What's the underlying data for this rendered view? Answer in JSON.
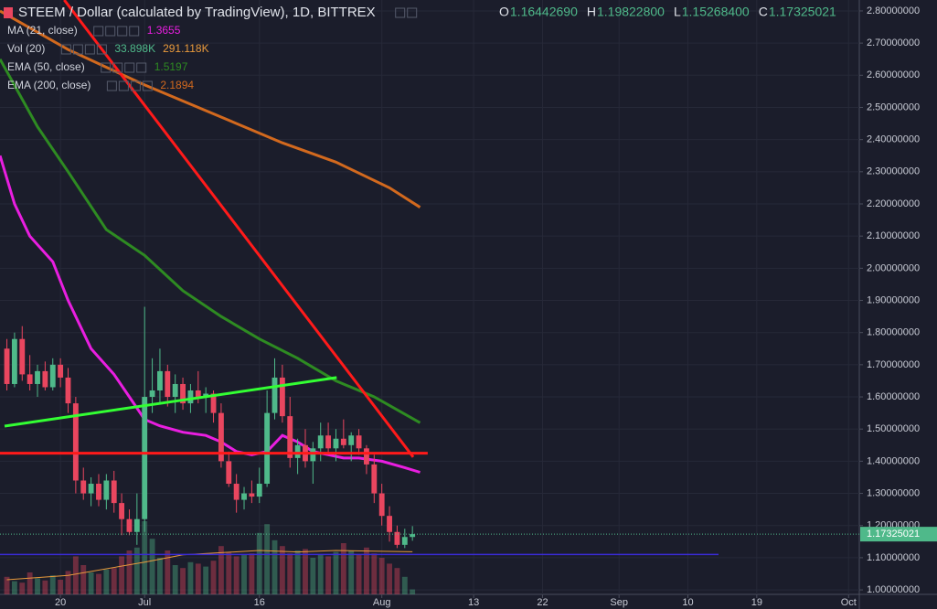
{
  "chart_data": {
    "type": "candlestick",
    "title": "STEEM / Dollar (calculated by TradingView), 1D, BITTREX",
    "ohlc_labels": [
      {
        "key": "O",
        "label": "1.16442690"
      },
      {
        "key": "H",
        "label": "1.19822800"
      },
      {
        "key": "L",
        "label": "1.15268400"
      },
      {
        "key": "C",
        "label": "1.17325021"
      }
    ],
    "up_color": "#4fb98a",
    "down_color": "#e9465f",
    "x": [
      12,
      13,
      14,
      15,
      16,
      17,
      18,
      19,
      20,
      21,
      22,
      23,
      24,
      25,
      26,
      27,
      28,
      29,
      30,
      31,
      32,
      33,
      34,
      35,
      36,
      37,
      38,
      39,
      40,
      41,
      42,
      43,
      44,
      45,
      46,
      47,
      48,
      49,
      50,
      51,
      52,
      53,
      54,
      55,
      56,
      57,
      58,
      59,
      60,
      61,
      62,
      63,
      64,
      65
    ],
    "open": [
      1.75,
      1.64,
      1.78,
      1.67,
      1.64,
      1.68,
      1.63,
      1.7,
      1.66,
      1.58,
      1.34,
      1.3,
      1.33,
      1.28,
      1.34,
      1.27,
      1.22,
      1.18,
      1.22,
      1.6,
      1.62,
      1.68,
      1.6,
      1.64,
      1.58,
      1.62,
      1.6,
      1.61,
      1.55,
      1.4,
      1.33,
      1.28,
      1.3,
      1.29,
      1.33,
      1.55,
      1.66,
      1.54,
      1.41,
      1.45,
      1.4,
      1.44,
      1.48,
      1.44,
      1.47,
      1.45,
      1.48,
      1.44,
      1.39,
      1.3,
      1.23,
      1.18,
      1.14,
      1.1644269
    ],
    "high": [
      1.78,
      1.8,
      1.82,
      1.73,
      1.7,
      1.71,
      1.72,
      1.72,
      1.69,
      1.6,
      1.38,
      1.35,
      1.36,
      1.36,
      1.37,
      1.3,
      1.25,
      1.3,
      1.88,
      1.72,
      1.75,
      1.7,
      1.67,
      1.66,
      1.64,
      1.68,
      1.63,
      1.62,
      1.58,
      1.43,
      1.36,
      1.32,
      1.34,
      1.38,
      1.62,
      1.72,
      1.7,
      1.6,
      1.47,
      1.5,
      1.46,
      1.52,
      1.52,
      1.5,
      1.53,
      1.49,
      1.5,
      1.45,
      1.42,
      1.33,
      1.26,
      1.2,
      1.19,
      1.198228
    ],
    "low": [
      1.62,
      1.63,
      1.65,
      1.62,
      1.6,
      1.62,
      1.62,
      1.63,
      1.55,
      1.3,
      1.28,
      1.26,
      1.26,
      1.25,
      1.24,
      1.17,
      1.17,
      1.14,
      1.18,
      1.55,
      1.58,
      1.57,
      1.55,
      1.56,
      1.55,
      1.58,
      1.55,
      1.52,
      1.38,
      1.32,
      1.24,
      1.25,
      1.27,
      1.27,
      1.32,
      1.53,
      1.52,
      1.38,
      1.36,
      1.38,
      1.33,
      1.4,
      1.42,
      1.4,
      1.44,
      1.4,
      1.42,
      1.36,
      1.27,
      1.2,
      1.15,
      1.13,
      1.13,
      1.152684
    ],
    "close": [
      1.64,
      1.78,
      1.67,
      1.64,
      1.68,
      1.63,
      1.7,
      1.66,
      1.58,
      1.34,
      1.3,
      1.33,
      1.28,
      1.34,
      1.27,
      1.22,
      1.18,
      1.22,
      1.6,
      1.62,
      1.68,
      1.6,
      1.64,
      1.58,
      1.62,
      1.6,
      1.61,
      1.55,
      1.4,
      1.33,
      1.28,
      1.3,
      1.29,
      1.33,
      1.55,
      1.66,
      1.54,
      1.41,
      1.45,
      1.4,
      1.44,
      1.48,
      1.44,
      1.47,
      1.45,
      1.48,
      1.44,
      1.39,
      1.3,
      1.23,
      1.18,
      1.14,
      1.1644269,
      1.17325021
    ],
    "volume": {
      "ylim": [
        0,
        1000
      ],
      "values": [
        120,
        90,
        80,
        150,
        110,
        95,
        130,
        100,
        160,
        260,
        200,
        150,
        140,
        170,
        180,
        260,
        300,
        320,
        500,
        380,
        250,
        300,
        200,
        180,
        220,
        210,
        190,
        230,
        330,
        290,
        260,
        270,
        280,
        420,
        480,
        370,
        330,
        280,
        300,
        310,
        250,
        270,
        260,
        290,
        350,
        300,
        270,
        320,
        280,
        250,
        210,
        180,
        120,
        33.898
      ]
    },
    "indicators": [
      {
        "name": "MA (21, close)",
        "color": "#e91ee0",
        "labels": [
          {
            "label": "1.3655",
            "color": "#e91ee0"
          }
        ],
        "x": [
          11.1,
          13,
          15,
          18,
          20,
          23,
          26,
          28,
          30,
          32,
          35,
          38,
          40,
          42,
          44,
          46,
          48,
          50,
          52,
          54,
          56,
          58,
          61,
          64,
          66
        ],
        "values": [
          2.35,
          2.2,
          2.1,
          2.02,
          1.9,
          1.75,
          1.67,
          1.6,
          1.53,
          1.51,
          1.49,
          1.48,
          1.46,
          1.43,
          1.42,
          1.43,
          1.48,
          1.46,
          1.43,
          1.42,
          1.41,
          1.41,
          1.4,
          1.38,
          1.3655
        ]
      },
      {
        "name": "Vol (20)",
        "color": "#e99a3c",
        "axis": "volume",
        "labels": [
          {
            "label": "33.898K",
            "color": "#4fb98a"
          },
          {
            "label": "291.118K",
            "color": "#e99a3c"
          }
        ],
        "x": [
          12,
          20,
          30,
          35,
          45,
          50,
          55,
          60,
          65
        ],
        "values": [
          100,
          130,
          220,
          270,
          300,
          290,
          300,
          295,
          291.118
        ]
      },
      {
        "name": "EMA (50, close)",
        "color": "#2e8b22",
        "labels": [
          {
            "label": "1.5197",
            "color": "#2e8b22"
          }
        ],
        "x": [
          11.1,
          16,
          20,
          25,
          30,
          35,
          40,
          45,
          50,
          55,
          60,
          66
        ],
        "values": [
          2.65,
          2.44,
          2.3,
          2.12,
          2.04,
          1.93,
          1.85,
          1.78,
          1.72,
          1.65,
          1.6,
          1.5197
        ]
      },
      {
        "name": "EMA (200, close)",
        "color": "#d2691e",
        "labels": [
          {
            "label": "2.1894",
            "color": "#d2691e"
          }
        ],
        "x": [
          11.1,
          20,
          30,
          40,
          48,
          55,
          62,
          66
        ],
        "values": [
          2.8,
          2.68,
          2.57,
          2.47,
          2.39,
          2.33,
          2.25,
          2.1894
        ]
      }
    ],
    "drawings": [
      {
        "color": "#ff1a1a",
        "x": [
          19.5,
          65.1
        ],
        "values": [
          2.834,
          1.413
        ]
      },
      {
        "color": "#33ff33",
        "x": [
          11.7,
          55.1
        ],
        "values": [
          1.509,
          1.66
        ]
      },
      {
        "color": "#ff1a1a",
        "x": [
          11.1,
          67
        ],
        "values": [
          1.425,
          1.425
        ]
      },
      {
        "color": "#3a2bd6",
        "x": [
          11.1,
          105
        ],
        "values": [
          1.11,
          1.11
        ]
      }
    ],
    "xlim": [
      11.1,
      123.4
    ],
    "xticks": [
      {
        "value": 19,
        "label": "20"
      },
      {
        "value": 30,
        "label": "Jul"
      },
      {
        "value": 45,
        "label": "16"
      },
      {
        "value": 61,
        "label": "Aug"
      },
      {
        "value": 73,
        "label": "13"
      },
      {
        "value": 82,
        "label": "22"
      },
      {
        "value": 92,
        "label": "Sep"
      },
      {
        "value": 101,
        "label": "10"
      },
      {
        "value": 110,
        "label": "19"
      },
      {
        "value": 122,
        "label": "Oct"
      }
    ],
    "ylim": [
      0.986,
      2.834
    ],
    "yticks": [
      {
        "value": 1.0,
        "label": "1.00000000"
      },
      {
        "value": 1.1,
        "label": "1.10000000"
      },
      {
        "value": 1.2,
        "label": "1.20000000"
      },
      {
        "value": 1.3,
        "label": "1.30000000"
      },
      {
        "value": 1.4,
        "label": "1.40000000"
      },
      {
        "value": 1.5,
        "label": "1.50000000"
      },
      {
        "value": 1.6,
        "label": "1.60000000"
      },
      {
        "value": 1.7,
        "label": "1.70000000"
      },
      {
        "value": 1.8,
        "label": "1.80000000"
      },
      {
        "value": 1.9,
        "label": "1.90000000"
      },
      {
        "value": 2.0,
        "label": "2.00000000"
      },
      {
        "value": 2.1,
        "label": "2.10000000"
      },
      {
        "value": 2.2,
        "label": "2.20000000"
      },
      {
        "value": 2.3,
        "label": "2.30000000"
      },
      {
        "value": 2.4,
        "label": "2.40000000"
      },
      {
        "value": 2.5,
        "label": "2.50000000"
      },
      {
        "value": 2.6,
        "label": "2.60000000"
      },
      {
        "value": 2.7,
        "label": "2.70000000"
      },
      {
        "value": 2.8,
        "label": "2.80000000"
      }
    ],
    "grid": true
  }
}
